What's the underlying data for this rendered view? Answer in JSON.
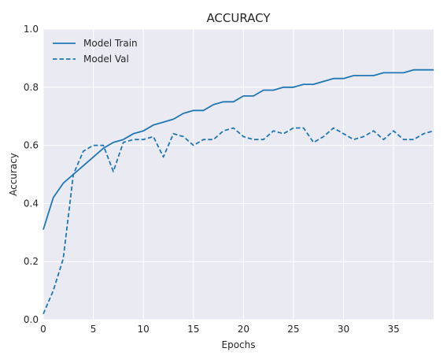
{
  "chart_data": {
    "type": "line",
    "title": "ACCURACY",
    "xlabel": "Epochs",
    "ylabel": "Accuracy",
    "xlim": [
      0,
      39
    ],
    "ylim": [
      0.0,
      1.0
    ],
    "xticks": [
      0,
      5,
      10,
      15,
      20,
      25,
      30,
      35
    ],
    "yticks": [
      0.0,
      0.2,
      0.4,
      0.6,
      0.8,
      1.0
    ],
    "xtick_labels": [
      "0",
      "5",
      "10",
      "15",
      "20",
      "25",
      "30",
      "35"
    ],
    "ytick_labels": [
      "0.0",
      "0.2",
      "0.4",
      "0.6",
      "0.8",
      "1.0"
    ],
    "grid": true,
    "legend_position": "top-left",
    "x": [
      0,
      1,
      2,
      3,
      4,
      5,
      6,
      7,
      8,
      9,
      10,
      11,
      12,
      13,
      14,
      15,
      16,
      17,
      18,
      19,
      20,
      21,
      22,
      23,
      24,
      25,
      26,
      27,
      28,
      29,
      30,
      31,
      32,
      33,
      34,
      35,
      36,
      37,
      38,
      39
    ],
    "series": [
      {
        "name": "Model Train",
        "style": "solid",
        "color": "#1f77b4",
        "values": [
          0.31,
          0.42,
          0.47,
          0.5,
          0.53,
          0.56,
          0.59,
          0.61,
          0.62,
          0.64,
          0.65,
          0.67,
          0.68,
          0.69,
          0.71,
          0.72,
          0.72,
          0.74,
          0.75,
          0.75,
          0.77,
          0.77,
          0.79,
          0.79,
          0.8,
          0.8,
          0.81,
          0.81,
          0.82,
          0.83,
          0.83,
          0.84,
          0.84,
          0.84,
          0.85,
          0.85,
          0.85,
          0.86,
          0.86,
          0.86
        ]
      },
      {
        "name": "Model Val",
        "style": "dashed",
        "color": "#1f77b4",
        "values": [
          0.02,
          0.1,
          0.21,
          0.5,
          0.58,
          0.6,
          0.6,
          0.51,
          0.61,
          0.62,
          0.62,
          0.63,
          0.56,
          0.64,
          0.63,
          0.6,
          0.62,
          0.62,
          0.65,
          0.66,
          0.63,
          0.62,
          0.62,
          0.65,
          0.64,
          0.66,
          0.66,
          0.61,
          0.63,
          0.66,
          0.64,
          0.62,
          0.63,
          0.65,
          0.62,
          0.65,
          0.62,
          0.62,
          0.64,
          0.65
        ]
      }
    ]
  }
}
